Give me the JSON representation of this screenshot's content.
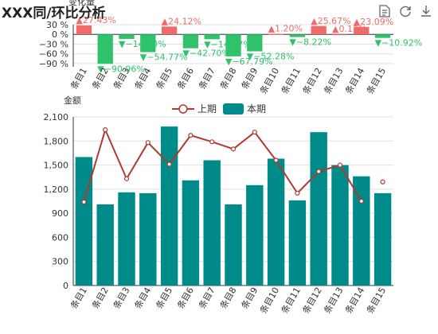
{
  "title": "XXX同/环比分析",
  "toolbar": {
    "icons": [
      "data-view-icon",
      "restore-icon",
      "save-image-icon"
    ]
  },
  "colors": {
    "positive": "#f16a6a",
    "negative": "#2ec26a",
    "bar": "#008b8b",
    "line": "#b03a2e",
    "grid": "#e0e0e0",
    "axis": "#333333"
  },
  "chart_data": [
    {
      "type": "bar",
      "ylabel": "变化量",
      "categories": [
        "条目1",
        "条目2",
        "条目3",
        "条目4",
        "条目5",
        "条目6",
        "条目7",
        "条目8",
        "条目9",
        "条目10",
        "条目11",
        "条目12",
        "条目13",
        "条目14",
        "条目15"
      ],
      "values": [
        27.43,
        -90.96,
        -14.0,
        -54.77,
        24.12,
        -42.7,
        -14.97,
        -67.79,
        -52.28,
        1.2,
        -8.22,
        25.67,
        0.13,
        23.09,
        -10.92
      ],
      "labels": [
        "▲27.43%",
        "▼−90.96%",
        "▼−14.00%",
        "▼−54.77%",
        "▲24.12%",
        "▼−42.70%",
        "▼−14.97%",
        "▼−67.79%",
        "▼−52.28%",
        "▲1.20%",
        "▼−8.22%",
        "▲25.67%",
        "▲0.13%",
        "▲23.09%",
        "▼−10.92%"
      ],
      "yticks": [
        "30 %",
        "0 %",
        "−30 %",
        "−60 %",
        "−90 %"
      ],
      "ylim": [
        -100,
        30
      ]
    },
    {
      "type": "bar+line",
      "ylabel": "金额",
      "categories": [
        "条目1",
        "条目2",
        "条目3",
        "条目4",
        "条目5",
        "条目6",
        "条目7",
        "条目8",
        "条目9",
        "条目10",
        "条目11",
        "条目12",
        "条目13",
        "条目14",
        "条目15"
      ],
      "series": [
        {
          "name": "上期",
          "type": "line",
          "values": [
            1040,
            1940,
            1330,
            1780,
            1510,
            1870,
            1790,
            1700,
            1910,
            1560,
            1150,
            1420,
            1500,
            1050,
            1290
          ]
        },
        {
          "name": "本期",
          "type": "bar",
          "values": [
            1600,
            1010,
            1160,
            1150,
            1980,
            1310,
            1560,
            1010,
            1250,
            1580,
            1060,
            1910,
            1500,
            1360,
            1150
          ]
        }
      ],
      "yticks": [
        "0",
        "300",
        "600",
        "900",
        "1,200",
        "1,500",
        "1,800",
        "2,100"
      ],
      "ylim": [
        0,
        2100
      ],
      "legend": "top-center"
    }
  ]
}
